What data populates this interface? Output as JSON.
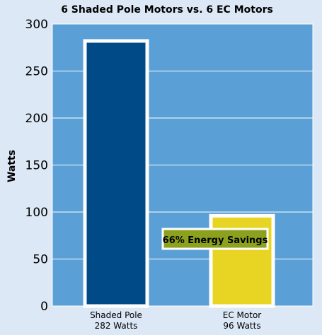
{
  "chart_data": {
    "type": "bar",
    "title": "6 Shaded Pole Motors vs. 6 EC Motors",
    "ylabel": "Watts",
    "ylim": [
      0,
      300
    ],
    "yticks": [
      0,
      50,
      100,
      150,
      200,
      250,
      300
    ],
    "grid": true,
    "categories": [
      "Shaded Pole",
      "EC Motor"
    ],
    "category_sublabels": [
      "282 Watts",
      "96 Watts"
    ],
    "values": [
      282,
      96
    ],
    "bar_colors": [
      "#004b87",
      "#e8d422"
    ],
    "annotation": {
      "text": "66% Energy Savings",
      "color": "#8ca11d"
    }
  },
  "colors": {
    "page_background": "#dce8f6",
    "plot_background": "#5aa0d6",
    "grid": "#ffffff",
    "bar_outline": "#ffffff"
  }
}
